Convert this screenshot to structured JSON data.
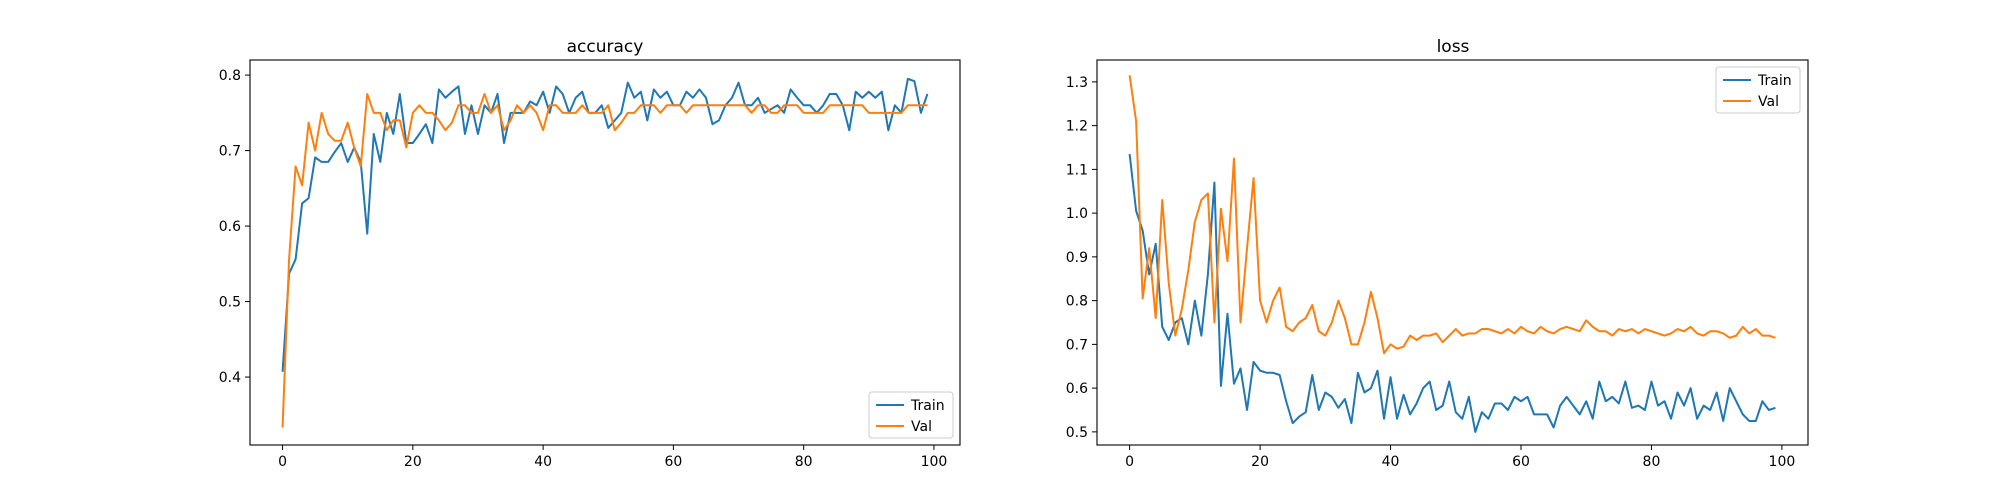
{
  "chart_data": [
    {
      "type": "line",
      "title": "accuracy",
      "xlabel": "",
      "ylabel": "",
      "xlim": [
        -5,
        104
      ],
      "ylim": [
        0.31,
        0.82
      ],
      "xticks": [
        0,
        20,
        40,
        60,
        80,
        100
      ],
      "yticks": [
        0.4,
        0.5,
        0.6,
        0.7,
        0.8
      ],
      "legend_position": "lower-right",
      "series": [
        {
          "name": "Train",
          "color": "#1f77b4",
          "values": [
            0.407,
            0.537,
            0.556,
            0.63,
            0.637,
            0.691,
            0.685,
            0.685,
            0.698,
            0.71,
            0.685,
            0.704,
            0.685,
            0.59,
            0.722,
            0.685,
            0.75,
            0.722,
            0.775,
            0.71,
            0.71,
            0.722,
            0.735,
            0.71,
            0.781,
            0.77,
            0.778,
            0.785,
            0.722,
            0.76,
            0.722,
            0.76,
            0.75,
            0.775,
            0.71,
            0.75,
            0.75,
            0.75,
            0.765,
            0.76,
            0.778,
            0.75,
            0.785,
            0.775,
            0.75,
            0.77,
            0.778,
            0.75,
            0.75,
            0.76,
            0.73,
            0.74,
            0.75,
            0.79,
            0.77,
            0.778,
            0.74,
            0.781,
            0.77,
            0.778,
            0.76,
            0.76,
            0.778,
            0.77,
            0.781,
            0.77,
            0.735,
            0.74,
            0.76,
            0.77,
            0.79,
            0.76,
            0.76,
            0.77,
            0.75,
            0.755,
            0.76,
            0.75,
            0.781,
            0.77,
            0.76,
            0.76,
            0.75,
            0.76,
            0.775,
            0.775,
            0.76,
            0.727,
            0.778,
            0.77,
            0.778,
            0.77,
            0.778,
            0.727,
            0.76,
            0.75,
            0.795,
            0.792,
            0.75,
            0.775
          ]
        },
        {
          "name": "Val",
          "color": "#ff7f0e",
          "values": [
            0.333,
            0.556,
            0.679,
            0.654,
            0.737,
            0.7,
            0.75,
            0.722,
            0.713,
            0.713,
            0.737,
            0.704,
            0.679,
            0.775,
            0.75,
            0.75,
            0.727,
            0.74,
            0.74,
            0.704,
            0.75,
            0.76,
            0.75,
            0.75,
            0.74,
            0.727,
            0.737,
            0.76,
            0.76,
            0.75,
            0.75,
            0.775,
            0.75,
            0.76,
            0.727,
            0.74,
            0.76,
            0.75,
            0.76,
            0.75,
            0.727,
            0.76,
            0.76,
            0.75,
            0.75,
            0.75,
            0.76,
            0.75,
            0.75,
            0.75,
            0.76,
            0.727,
            0.737,
            0.75,
            0.75,
            0.76,
            0.76,
            0.76,
            0.75,
            0.76,
            0.76,
            0.76,
            0.75,
            0.76,
            0.76,
            0.76,
            0.76,
            0.76,
            0.76,
            0.76,
            0.76,
            0.76,
            0.75,
            0.76,
            0.76,
            0.75,
            0.75,
            0.76,
            0.76,
            0.76,
            0.75,
            0.75,
            0.75,
            0.75,
            0.76,
            0.76,
            0.76,
            0.76,
            0.76,
            0.76,
            0.75,
            0.75,
            0.75,
            0.75,
            0.75,
            0.75,
            0.76,
            0.76,
            0.76,
            0.76
          ]
        }
      ]
    },
    {
      "type": "line",
      "title": "loss",
      "xlabel": "",
      "ylabel": "",
      "xlim": [
        -5,
        104
      ],
      "ylim": [
        0.47,
        1.35
      ],
      "xticks": [
        0,
        20,
        40,
        60,
        80,
        100
      ],
      "yticks": [
        0.5,
        0.6,
        0.7,
        0.8,
        0.9,
        1.0,
        1.1,
        1.2,
        1.3
      ],
      "legend_position": "upper-right",
      "series": [
        {
          "name": "Train",
          "color": "#1f77b4",
          "values": [
            1.135,
            1.005,
            0.96,
            0.86,
            0.93,
            0.74,
            0.71,
            0.75,
            0.76,
            0.7,
            0.8,
            0.72,
            0.86,
            1.07,
            0.605,
            0.77,
            0.61,
            0.645,
            0.55,
            0.66,
            0.64,
            0.635,
            0.635,
            0.63,
            0.57,
            0.52,
            0.535,
            0.545,
            0.63,
            0.55,
            0.59,
            0.58,
            0.555,
            0.575,
            0.52,
            0.635,
            0.59,
            0.6,
            0.64,
            0.53,
            0.625,
            0.53,
            0.585,
            0.54,
            0.565,
            0.6,
            0.615,
            0.55,
            0.56,
            0.615,
            0.545,
            0.53,
            0.58,
            0.5,
            0.545,
            0.53,
            0.565,
            0.565,
            0.55,
            0.58,
            0.57,
            0.58,
            0.54,
            0.54,
            0.54,
            0.51,
            0.56,
            0.58,
            0.56,
            0.54,
            0.57,
            0.53,
            0.615,
            0.57,
            0.58,
            0.565,
            0.615,
            0.555,
            0.56,
            0.55,
            0.615,
            0.56,
            0.57,
            0.53,
            0.59,
            0.56,
            0.6,
            0.53,
            0.56,
            0.55,
            0.59,
            0.525,
            0.6,
            0.57,
            0.54,
            0.525,
            0.525,
            0.57,
            0.55,
            0.555
          ]
        },
        {
          "name": "Val",
          "color": "#ff7f0e",
          "values": [
            1.315,
            1.21,
            0.805,
            0.92,
            0.76,
            1.03,
            0.84,
            0.72,
            0.78,
            0.87,
            0.98,
            1.03,
            1.045,
            0.75,
            1.01,
            0.89,
            1.125,
            0.75,
            0.92,
            1.08,
            0.8,
            0.75,
            0.8,
            0.83,
            0.74,
            0.73,
            0.75,
            0.76,
            0.79,
            0.73,
            0.72,
            0.75,
            0.8,
            0.76,
            0.7,
            0.7,
            0.75,
            0.82,
            0.76,
            0.68,
            0.7,
            0.69,
            0.695,
            0.72,
            0.71,
            0.72,
            0.72,
            0.725,
            0.705,
            0.72,
            0.735,
            0.72,
            0.725,
            0.725,
            0.735,
            0.735,
            0.73,
            0.725,
            0.735,
            0.725,
            0.74,
            0.73,
            0.725,
            0.74,
            0.73,
            0.725,
            0.735,
            0.74,
            0.735,
            0.73,
            0.755,
            0.74,
            0.73,
            0.73,
            0.72,
            0.735,
            0.73,
            0.735,
            0.725,
            0.735,
            0.73,
            0.725,
            0.72,
            0.725,
            0.735,
            0.73,
            0.74,
            0.725,
            0.72,
            0.73,
            0.73,
            0.725,
            0.715,
            0.72,
            0.74,
            0.725,
            0.735,
            0.72,
            0.72,
            0.715
          ]
        }
      ]
    }
  ]
}
